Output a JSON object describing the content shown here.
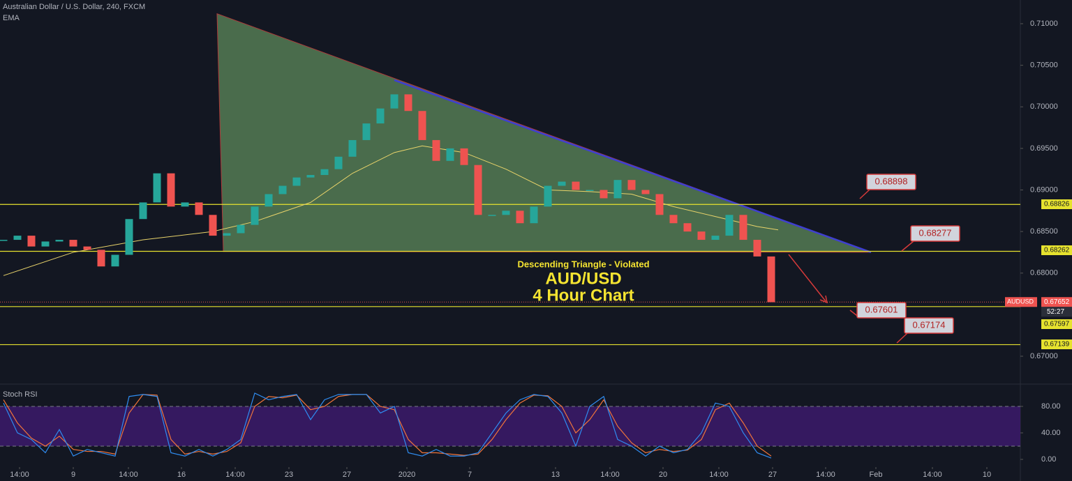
{
  "chart_data": {
    "type": "candlestick",
    "title": "Australian Dollar / U.S. Dollar, 240, FXCM",
    "indicator": "EMA",
    "xlim": [
      -0.25,
      72.85
    ],
    "xticks": [
      {
        "value": 1.15,
        "label": "14:00"
      },
      {
        "value": 5,
        "label": "9"
      },
      {
        "value": 8.95,
        "label": "14:00"
      },
      {
        "value": 12.75,
        "label": "16"
      },
      {
        "value": 16.6,
        "label": "14:00"
      },
      {
        "value": 20.45,
        "label": "23"
      },
      {
        "value": 24.6,
        "label": "27"
      },
      {
        "value": 28.9,
        "label": "2020"
      },
      {
        "value": 33.4,
        "label": "7"
      },
      {
        "value": 39.55,
        "label": "13"
      },
      {
        "value": 43.45,
        "label": "14:00"
      },
      {
        "value": 47.25,
        "label": "20"
      },
      {
        "value": 51.25,
        "label": "14:00"
      },
      {
        "value": 55.1,
        "label": "27"
      },
      {
        "value": 58.9,
        "label": "14:00"
      },
      {
        "value": 62.5,
        "label": "Feb"
      },
      {
        "value": 66.55,
        "label": "14:00"
      },
      {
        "value": 70.45,
        "label": "10"
      }
    ],
    "ylim": [
      0.66673,
      0.71285
    ],
    "yticks": [
      {
        "value": 0.71,
        "label": "0.71000"
      },
      {
        "value": 0.705,
        "label": "0.70500"
      },
      {
        "value": 0.7,
        "label": "0.70000"
      },
      {
        "value": 0.695,
        "label": "0.69500"
      },
      {
        "value": 0.69,
        "label": "0.69000"
      },
      {
        "value": 0.685,
        "label": "0.68500"
      },
      {
        "value": 0.68,
        "label": "0.68000"
      },
      {
        "value": 0.67,
        "label": "0.67000"
      }
    ],
    "series": [
      {
        "name": "AUDUSD",
        "up_color": "#26a69a",
        "down_color": "#ef5350",
        "values": [
          0.684,
          0.6845,
          0.6832,
          0.6838,
          0.684,
          0.6832,
          0.6828,
          0.6808,
          0.6822,
          0.6865,
          0.6885,
          0.692,
          0.688,
          0.6885,
          0.687,
          0.6845,
          0.6848,
          0.6858,
          0.688,
          0.6895,
          0.6905,
          0.6915,
          0.6918,
          0.6925,
          0.694,
          0.696,
          0.698,
          0.6998,
          0.7015,
          0.6995,
          0.696,
          0.6935,
          0.695,
          0.693,
          0.687,
          0.687,
          0.6875,
          0.686,
          0.688,
          0.6905,
          0.691,
          0.69,
          0.69,
          0.689,
          0.6912,
          0.69,
          0.6895,
          0.687,
          0.686,
          0.685,
          0.684,
          0.6845,
          0.687,
          0.684,
          0.682,
          0.6765
        ]
      },
      {
        "name": "EMA",
        "color": "#e8d36a",
        "x": [
          0,
          5,
          10,
          15,
          18,
          22,
          25,
          28,
          30,
          33,
          36,
          39,
          42,
          45,
          48,
          51,
          54,
          55.5
        ],
        "values": [
          0.6797,
          0.6825,
          0.684,
          0.685,
          0.6862,
          0.6885,
          0.692,
          0.6945,
          0.6953,
          0.6945,
          0.6925,
          0.69,
          0.6898,
          0.6895,
          0.688,
          0.6868,
          0.6856,
          0.6852
        ]
      }
    ],
    "triangle": {
      "x": [
        15.3,
        15.75,
        62.15
      ],
      "y": [
        0.7112,
        0.6826,
        0.6825
      ],
      "color": "#5d8a5b"
    },
    "resistance": {
      "x": [
        28,
        62.15
      ],
      "y": [
        0.70321,
        0.6825
      ],
      "color": "#3f3fd0"
    },
    "hlines": [
      {
        "value": 0.68826,
        "label": "0.68826"
      },
      {
        "value": 0.68262,
        "label": "0.68262"
      },
      {
        "value": 0.67597,
        "label": "0.67597"
      },
      {
        "value": 0.67139,
        "label": "0.67139"
      }
    ],
    "last_price": {
      "value": 0.67652,
      "label": "0.67652",
      "symbol": "AUDUSD",
      "countdown": "52:27"
    },
    "annotations": [
      "0.68898",
      "0.68277",
      "0.67601",
      "0.67174"
    ],
    "caption": [
      "Descending Triangle - Violated",
      "AUD/USD",
      "4 Hour Chart"
    ],
    "rsi": {
      "title": "Stoch RSI",
      "ylim": [
        -11.6,
        112.6
      ],
      "band": [
        20,
        80
      ],
      "yticks": [
        {
          "value": 80,
          "label": "80.00"
        },
        {
          "value": 40,
          "label": "40.00"
        },
        {
          "value": 0,
          "label": "0.00"
        }
      ],
      "series": [
        {
          "name": "%K",
          "color": "#2f8cf0",
          "values": [
            85,
            40,
            30,
            10,
            45,
            5,
            15,
            10,
            5,
            95,
            98,
            95,
            10,
            5,
            15,
            5,
            15,
            30,
            100,
            90,
            95,
            98,
            60,
            90,
            98,
            98,
            98,
            70,
            80,
            10,
            5,
            15,
            5,
            5,
            10,
            40,
            70,
            90,
            98,
            95,
            70,
            20,
            80,
            95,
            30,
            20,
            5,
            20,
            10,
            15,
            40,
            85,
            80,
            40,
            10,
            2
          ]
        },
        {
          "name": "%D",
          "color": "#f0743a",
          "values": [
            90,
            55,
            32,
            20,
            35,
            15,
            12,
            12,
            8,
            70,
            98,
            97,
            30,
            8,
            12,
            8,
            12,
            25,
            80,
            95,
            93,
            97,
            75,
            80,
            95,
            98,
            98,
            80,
            75,
            30,
            10,
            10,
            8,
            6,
            8,
            30,
            60,
            85,
            97,
            96,
            80,
            40,
            60,
            90,
            50,
            25,
            10,
            15,
            12,
            14,
            30,
            75,
            85,
            55,
            20,
            5
          ]
        }
      ]
    }
  }
}
